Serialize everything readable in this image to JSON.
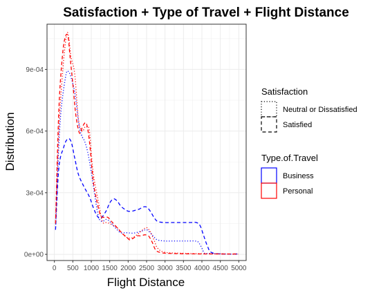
{
  "chart_data": {
    "type": "line",
    "title": "Satisfaction + Type of Travel + Flight Distance",
    "xlabel": "Flight Distance",
    "ylabel": "Distribution",
    "xlim": [
      -200,
      5200
    ],
    "ylim": [
      -3e-05,
      0.00112
    ],
    "xticks": [
      0,
      500,
      1000,
      1500,
      2000,
      2500,
      3000,
      3500,
      4000,
      4500,
      5000
    ],
    "xtick_labels": [
      "0",
      "500",
      "1000",
      "1500",
      "2000",
      "2500",
      "3000",
      "3500",
      "4000",
      "4500",
      "5000"
    ],
    "yticks": [
      0,
      0.0003,
      0.0006,
      0.0009
    ],
    "ytick_labels": [
      "0e+00",
      "3e-04",
      "6e-04",
      "9e-04"
    ],
    "grid": true,
    "legend_position": "right",
    "legends": [
      {
        "title": "Satisfaction",
        "items": [
          {
            "label": "Neutral or Dissatisfied",
            "linetype": "dotted"
          },
          {
            "label": "Satisfied",
            "linetype": "dashed"
          }
        ]
      },
      {
        "title": "Type.of.Travel",
        "items": [
          {
            "label": "Business",
            "color": "#0000ff"
          },
          {
            "label": "Personal",
            "color": "#ff0000"
          }
        ]
      }
    ],
    "series": [
      {
        "satisfaction": "Neutral or Dissatisfied",
        "travel_type": "Business",
        "color": "#0000ff",
        "linetype": "dotted",
        "x": [
          31,
          150,
          300,
          380,
          470,
          560,
          650,
          700,
          760,
          820,
          900,
          1000,
          1100,
          1200,
          1300,
          1400,
          1500,
          1600,
          1700,
          1800,
          1900,
          2000,
          2100,
          2200,
          2300,
          2400,
          2500,
          2600,
          2700,
          2800,
          3000,
          3200,
          3400,
          3600,
          3800,
          3900,
          4000,
          4050,
          4100,
          4300,
          4600,
          4983
        ],
        "y": [
          0.00012,
          0.00063,
          0.00086,
          0.00089,
          0.00085,
          0.00078,
          0.00065,
          0.0006,
          0.00057,
          0.00055,
          0.0005,
          0.0004,
          0.00028,
          0.00018,
          0.00016,
          0.00017,
          0.00016,
          0.00014,
          0.00012,
          0.000105,
          0.000105,
          0.000105,
          0.000103,
          0.000105,
          0.00011,
          0.000115,
          0.00012,
          0.000105,
          8.5e-05,
          7e-05,
          6.5e-05,
          6.5e-05,
          6.5e-05,
          6.5e-05,
          6.5e-05,
          6e-05,
          3e-05,
          1e-05,
          5e-06,
          4e-06,
          2e-06,
          1e-06
        ]
      },
      {
        "satisfaction": "Satisfied",
        "travel_type": "Business",
        "color": "#0000ff",
        "linetype": "dashed",
        "x": [
          31,
          120,
          250,
          350,
          450,
          550,
          650,
          800,
          950,
          1050,
          1150,
          1250,
          1400,
          1500,
          1600,
          1700,
          1800,
          1900,
          2000,
          2100,
          2200,
          2300,
          2400,
          2500,
          2600,
          2700,
          2800,
          3000,
          3200,
          3500,
          3700,
          3850,
          3950,
          4050,
          4150,
          4250,
          4500,
          4983
        ],
        "y": [
          0.00012,
          0.00042,
          0.00052,
          0.00056,
          0.00055,
          0.00047,
          0.00039,
          0.00033,
          0.00028,
          0.00023,
          0.00019,
          0.000175,
          0.00021,
          0.00025,
          0.00027,
          0.00026,
          0.000235,
          0.00022,
          0.00021,
          0.00021,
          0.000215,
          0.00022,
          0.00023,
          0.00023,
          0.00021,
          0.00018,
          0.00016,
          0.000155,
          0.000155,
          0.000155,
          0.000155,
          0.000155,
          0.00014,
          9e-05,
          4e-05,
          1e-05,
          2e-06,
          2e-06
        ]
      },
      {
        "satisfaction": "Neutral or Dissatisfied",
        "travel_type": "Personal",
        "color": "#ff0000",
        "linetype": "dotted",
        "x": [
          31,
          120,
          220,
          300,
          350,
          400,
          450,
          550,
          650,
          750,
          830,
          880,
          950,
          1050,
          1200,
          1300,
          1400,
          1500,
          1600,
          1700,
          1800,
          1900,
          2000,
          2100,
          2200,
          2300,
          2400,
          2500,
          2600,
          2700,
          2800,
          3000,
          3500,
          4000,
          4500,
          4983
        ],
        "y": [
          0.00015,
          0.0006,
          0.00088,
          0.00103,
          0.00108,
          0.00104,
          0.00096,
          0.00088,
          0.00066,
          0.0006,
          0.00062,
          0.00062,
          0.0006,
          0.0004,
          0.00025,
          0.00016,
          0.000155,
          0.00015,
          0.00014,
          0.00013,
          0.00011,
          9e-05,
          8e-05,
          8e-05,
          9e-05,
          0.000105,
          0.00012,
          0.00013,
          0.00011,
          7e-05,
          3e-05,
          1e-05,
          5e-06,
          3e-06,
          2e-06,
          1e-06
        ]
      },
      {
        "satisfaction": "Satisfied",
        "travel_type": "Personal",
        "color": "#ff0000",
        "linetype": "dashed",
        "x": [
          31,
          120,
          220,
          300,
          370,
          420,
          500,
          580,
          680,
          760,
          830,
          880,
          950,
          1050,
          1150,
          1250,
          1350,
          1450,
          1550,
          1650,
          1750,
          1850,
          1950,
          2050,
          2150,
          2250,
          2350,
          2450,
          2550,
          2650,
          2750,
          2900,
          3100,
          3500,
          4000,
          4500,
          4983
        ],
        "y": [
          0.00015,
          0.0007,
          0.00097,
          0.00106,
          0.00106,
          0.00097,
          0.00083,
          0.00068,
          0.00059,
          0.00062,
          0.00064,
          0.00063,
          0.00055,
          0.00036,
          0.00026,
          0.00019,
          0.00018,
          0.00018,
          0.00016,
          0.00014,
          0.00012,
          0.0001,
          8.5e-05,
          7e-05,
          8e-05,
          9e-05,
          9e-05,
          9.5e-05,
          9e-05,
          6e-05,
          2e-05,
          8e-06,
          5e-06,
          3e-06,
          2e-06,
          2e-06,
          2e-06
        ]
      }
    ]
  }
}
